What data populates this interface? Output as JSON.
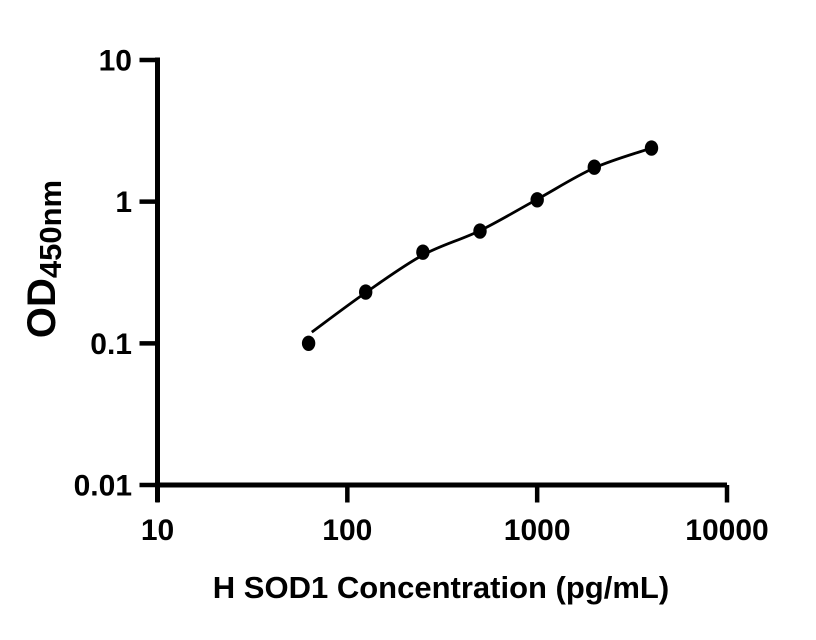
{
  "figure": {
    "background": "#ffffff"
  },
  "chart_data": {
    "type": "scatter",
    "title": "",
    "xlabel": "H SOD1 Concentration (pg/mL)",
    "ylabel_main": "OD",
    "ylabel_sub": "450nm",
    "x_scale": "log",
    "y_scale": "log",
    "xlim": [
      10,
      10000
    ],
    "ylim": [
      0.01,
      10
    ],
    "grid": false,
    "legend": "none",
    "x_ticks": [
      {
        "value": 10,
        "label": "10"
      },
      {
        "value": 100,
        "label": "100"
      },
      {
        "value": 1000,
        "label": "1000"
      },
      {
        "value": 10000,
        "label": "10000"
      }
    ],
    "y_ticks": [
      {
        "value": 10,
        "label": "10"
      },
      {
        "value": 1,
        "label": "1"
      },
      {
        "value": 0.1,
        "label": "0.1"
      },
      {
        "value": 0.01,
        "label": "0.01"
      }
    ],
    "series": [
      {
        "marker": "filled-circle",
        "color": "#000000",
        "points": [
          {
            "x": 62.5,
            "y": 0.1
          },
          {
            "x": 125,
            "y": 0.23
          },
          {
            "x": 250,
            "y": 0.44
          },
          {
            "x": 500,
            "y": 0.62
          },
          {
            "x": 1000,
            "y": 1.03
          },
          {
            "x": 2000,
            "y": 1.75
          },
          {
            "x": 4000,
            "y": 2.39
          }
        ]
      }
    ],
    "fit_curve": [
      {
        "x": 65,
        "y": 0.12
      },
      {
        "x": 125,
        "y": 0.228
      },
      {
        "x": 250,
        "y": 0.42
      },
      {
        "x": 500,
        "y": 0.625
      },
      {
        "x": 1000,
        "y": 1.04
      },
      {
        "x": 2000,
        "y": 1.73
      },
      {
        "x": 4000,
        "y": 2.39
      }
    ]
  },
  "colors": {
    "axis": "#000000",
    "text": "#000000",
    "curve": "#000000",
    "marker": "#000000",
    "background": "#ffffff"
  }
}
